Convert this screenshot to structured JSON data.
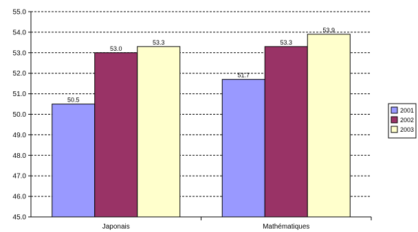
{
  "chart_data": {
    "type": "bar",
    "categories": [
      "Japonais",
      "Mathématiques"
    ],
    "series": [
      {
        "name": "2001",
        "values": [
          50.5,
          51.7
        ],
        "color": "#9999ff"
      },
      {
        "name": "2002",
        "values": [
          53.0,
          53.3
        ],
        "color": "#993366"
      },
      {
        "name": "2003",
        "values": [
          53.3,
          53.9
        ],
        "color": "#ffffcc"
      }
    ],
    "data_labels": [
      [
        "50.5",
        "51.7"
      ],
      [
        "53.0",
        "53.3"
      ],
      [
        "53.3",
        "53.9"
      ]
    ],
    "yticks": [
      "45.0",
      "46.0",
      "47.0",
      "48.0",
      "49.0",
      "50.0",
      "51.0",
      "52.0",
      "53.0",
      "54.0",
      "55.0"
    ],
    "ylim": [
      45.0,
      55.0
    ],
    "ytick_step": 1.0,
    "title": "",
    "xlabel": "",
    "ylabel": "",
    "grid": "horizontal dashed",
    "legend_position": "right"
  }
}
